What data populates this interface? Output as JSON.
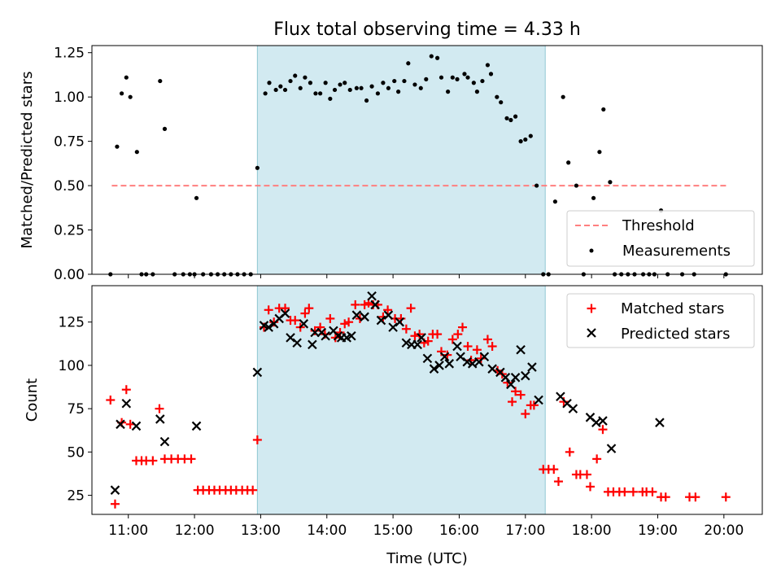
{
  "title": "Flux total observing time = 4.33 h",
  "chart_data": [
    {
      "type": "scatter",
      "panel": "top",
      "ylabel": "Matched/Predicted stars",
      "ylim": [
        0,
        1.29
      ],
      "yticks": [
        {
          "value": 0,
          "label": "0.00"
        },
        {
          "value": 0.25,
          "label": "0.25"
        },
        {
          "value": 0.5,
          "label": "0.50"
        },
        {
          "value": 0.75,
          "label": "0.75"
        },
        {
          "value": 1.0,
          "label": "1.00"
        },
        {
          "value": 1.25,
          "label": "1.25"
        }
      ],
      "threshold": {
        "label": "Threshold",
        "value": 0.5,
        "x_start": 10.75,
        "x_end": 20.08,
        "color": "#ff7f7f"
      },
      "measurements": {
        "label": "Measurements",
        "color": "#000000",
        "points": [
          [
            10.73,
            0
          ],
          [
            10.83,
            0.72
          ],
          [
            10.9,
            1.02
          ],
          [
            10.97,
            1.11
          ],
          [
            11.03,
            1.0
          ],
          [
            11.13,
            0.69
          ],
          [
            11.2,
            0
          ],
          [
            11.27,
            0
          ],
          [
            11.37,
            0
          ],
          [
            11.48,
            1.09
          ],
          [
            11.55,
            0.82
          ],
          [
            11.7,
            0
          ],
          [
            11.83,
            0
          ],
          [
            11.93,
            0
          ],
          [
            12.0,
            0
          ],
          [
            12.03,
            0.43
          ],
          [
            12.13,
            0
          ],
          [
            12.25,
            0
          ],
          [
            12.35,
            0
          ],
          [
            12.45,
            0
          ],
          [
            12.55,
            0
          ],
          [
            12.65,
            0
          ],
          [
            12.75,
            0
          ],
          [
            12.85,
            0
          ],
          [
            12.95,
            0.6
          ],
          [
            13.07,
            1.02
          ],
          [
            13.13,
            1.08
          ],
          [
            13.23,
            1.04
          ],
          [
            13.3,
            1.06
          ],
          [
            13.37,
            1.04
          ],
          [
            13.45,
            1.09
          ],
          [
            13.52,
            1.12
          ],
          [
            13.6,
            1.05
          ],
          [
            13.67,
            1.11
          ],
          [
            13.75,
            1.08
          ],
          [
            13.83,
            1.02
          ],
          [
            13.9,
            1.02
          ],
          [
            13.98,
            1.08
          ],
          [
            14.05,
            0.99
          ],
          [
            14.12,
            1.04
          ],
          [
            14.2,
            1.07
          ],
          [
            14.27,
            1.08
          ],
          [
            14.35,
            1.04
          ],
          [
            14.45,
            1.05
          ],
          [
            14.52,
            1.05
          ],
          [
            14.6,
            0.98
          ],
          [
            14.68,
            1.06
          ],
          [
            14.77,
            1.02
          ],
          [
            14.85,
            1.08
          ],
          [
            14.93,
            1.05
          ],
          [
            15.02,
            1.09
          ],
          [
            15.08,
            1.03
          ],
          [
            15.17,
            1.09
          ],
          [
            15.23,
            1.19
          ],
          [
            15.33,
            1.07
          ],
          [
            15.42,
            1.05
          ],
          [
            15.5,
            1.1
          ],
          [
            15.58,
            1.23
          ],
          [
            15.67,
            1.22
          ],
          [
            15.73,
            1.11
          ],
          [
            15.83,
            1.03
          ],
          [
            15.9,
            1.11
          ],
          [
            15.97,
            1.1
          ],
          [
            16.08,
            1.13
          ],
          [
            16.13,
            1.11
          ],
          [
            16.22,
            1.08
          ],
          [
            16.27,
            1.03
          ],
          [
            16.35,
            1.09
          ],
          [
            16.43,
            1.18
          ],
          [
            16.48,
            1.13
          ],
          [
            16.57,
            1.0
          ],
          [
            16.63,
            0.97
          ],
          [
            16.72,
            0.88
          ],
          [
            16.78,
            0.87
          ],
          [
            16.85,
            0.89
          ],
          [
            16.93,
            0.75
          ],
          [
            17.0,
            0.76
          ],
          [
            17.08,
            0.78
          ],
          [
            17.17,
            0.5
          ],
          [
            17.27,
            0
          ],
          [
            17.35,
            0
          ],
          [
            17.45,
            0.41
          ],
          [
            17.57,
            1.0
          ],
          [
            17.65,
            0.63
          ],
          [
            17.77,
            0.5
          ],
          [
            17.88,
            0
          ],
          [
            18.03,
            0.43
          ],
          [
            18.12,
            0.69
          ],
          [
            18.18,
            0.93
          ],
          [
            18.28,
            0.52
          ],
          [
            18.35,
            0
          ],
          [
            18.45,
            0
          ],
          [
            18.55,
            0
          ],
          [
            18.65,
            0
          ],
          [
            18.78,
            0
          ],
          [
            18.87,
            0
          ],
          [
            18.95,
            0
          ],
          [
            19.05,
            0.36
          ],
          [
            19.15,
            0
          ],
          [
            19.37,
            0
          ],
          [
            19.55,
            0
          ],
          [
            20.03,
            0
          ]
        ]
      },
      "legend": {
        "placement": "lower right",
        "entries": [
          "Threshold",
          "Measurements"
        ]
      }
    },
    {
      "type": "scatter",
      "panel": "bottom",
      "xlabel": "Time (UTC)",
      "ylabel": "Count",
      "ylim": [
        14,
        146
      ],
      "yticks": [
        25,
        50,
        75,
        100,
        125
      ],
      "xticks": [
        "11:00",
        "12:00",
        "13:00",
        "14:00",
        "15:00",
        "16:00",
        "17:00",
        "18:00",
        "19:00",
        "20:00"
      ],
      "series": [
        {
          "name": "Matched stars",
          "marker": "+",
          "color": "#ff0000",
          "points": [
            [
              10.73,
              80
            ],
            [
              10.8,
              20
            ],
            [
              10.9,
              67
            ],
            [
              10.97,
              86
            ],
            [
              11.03,
              66
            ],
            [
              11.12,
              45
            ],
            [
              11.2,
              45
            ],
            [
              11.27,
              45
            ],
            [
              11.37,
              45
            ],
            [
              11.47,
              75
            ],
            [
              11.55,
              46
            ],
            [
              11.65,
              46
            ],
            [
              11.75,
              46
            ],
            [
              11.85,
              46
            ],
            [
              11.95,
              46
            ],
            [
              12.05,
              28
            ],
            [
              12.13,
              28
            ],
            [
              12.22,
              28
            ],
            [
              12.3,
              28
            ],
            [
              12.38,
              28
            ],
            [
              12.47,
              28
            ],
            [
              12.55,
              28
            ],
            [
              12.63,
              28
            ],
            [
              12.72,
              28
            ],
            [
              12.8,
              28
            ],
            [
              12.88,
              28
            ],
            [
              12.95,
              57
            ],
            [
              13.05,
              122
            ],
            [
              13.12,
              132
            ],
            [
              13.2,
              125
            ],
            [
              13.28,
              133
            ],
            [
              13.37,
              133
            ],
            [
              13.45,
              126
            ],
            [
              13.52,
              126
            ],
            [
              13.6,
              122
            ],
            [
              13.67,
              130
            ],
            [
              13.73,
              133
            ],
            [
              13.82,
              120
            ],
            [
              13.9,
              122
            ],
            [
              13.97,
              118
            ],
            [
              14.05,
              127
            ],
            [
              14.13,
              116
            ],
            [
              14.2,
              119
            ],
            [
              14.27,
              124
            ],
            [
              14.33,
              125
            ],
            [
              14.43,
              135
            ],
            [
              14.5,
              127
            ],
            [
              14.57,
              135
            ],
            [
              14.63,
              136
            ],
            [
              14.7,
              135
            ],
            [
              14.77,
              135
            ],
            [
              14.85,
              128
            ],
            [
              14.92,
              132
            ],
            [
              15.03,
              127
            ],
            [
              15.12,
              127
            ],
            [
              15.2,
              121
            ],
            [
              15.27,
              133
            ],
            [
              15.33,
              117
            ],
            [
              15.4,
              118
            ],
            [
              15.47,
              113
            ],
            [
              15.53,
              114
            ],
            [
              15.6,
              118
            ],
            [
              15.67,
              118
            ],
            [
              15.73,
              108
            ],
            [
              15.82,
              106
            ],
            [
              15.9,
              115
            ],
            [
              15.98,
              118
            ],
            [
              16.05,
              122
            ],
            [
              16.13,
              111
            ],
            [
              16.18,
              103
            ],
            [
              16.27,
              109
            ],
            [
              16.33,
              104
            ],
            [
              16.43,
              115
            ],
            [
              16.5,
              111
            ],
            [
              16.58,
              97
            ],
            [
              16.65,
              95
            ],
            [
              16.73,
              90
            ],
            [
              16.8,
              79
            ],
            [
              16.85,
              85
            ],
            [
              16.93,
              83
            ],
            [
              17.0,
              72
            ],
            [
              17.08,
              77
            ],
            [
              17.13,
              77
            ],
            [
              17.27,
              40
            ],
            [
              17.35,
              40
            ],
            [
              17.43,
              40
            ],
            [
              17.5,
              33
            ],
            [
              17.58,
              79
            ],
            [
              17.67,
              50
            ],
            [
              17.77,
              37
            ],
            [
              17.83,
              37
            ],
            [
              17.93,
              37
            ],
            [
              17.98,
              30
            ],
            [
              18.08,
              46
            ],
            [
              18.17,
              63
            ],
            [
              18.25,
              27
            ],
            [
              18.33,
              27
            ],
            [
              18.42,
              27
            ],
            [
              18.5,
              27
            ],
            [
              18.63,
              27
            ],
            [
              18.77,
              27
            ],
            [
              18.83,
              27
            ],
            [
              18.92,
              27
            ],
            [
              19.05,
              24
            ],
            [
              19.12,
              24
            ],
            [
              19.48,
              24
            ],
            [
              19.57,
              24
            ],
            [
              20.03,
              24
            ]
          ]
        },
        {
          "name": "Predicted stars",
          "marker": "x",
          "color": "#000000",
          "points": [
            [
              10.8,
              28
            ],
            [
              10.88,
              66
            ],
            [
              10.97,
              78
            ],
            [
              11.12,
              65
            ],
            [
              11.48,
              69
            ],
            [
              11.55,
              56
            ],
            [
              12.03,
              65
            ],
            [
              12.95,
              96
            ],
            [
              13.05,
              123
            ],
            [
              13.12,
              122
            ],
            [
              13.2,
              124
            ],
            [
              13.28,
              127
            ],
            [
              13.37,
              130
            ],
            [
              13.45,
              116
            ],
            [
              13.55,
              113
            ],
            [
              13.65,
              124
            ],
            [
              13.78,
              112
            ],
            [
              13.82,
              119
            ],
            [
              13.92,
              119
            ],
            [
              13.98,
              117
            ],
            [
              14.1,
              120
            ],
            [
              14.17,
              117
            ],
            [
              14.22,
              116
            ],
            [
              14.3,
              116
            ],
            [
              14.37,
              117
            ],
            [
              14.45,
              129
            ],
            [
              14.57,
              128
            ],
            [
              14.68,
              140
            ],
            [
              14.73,
              135
            ],
            [
              14.82,
              126
            ],
            [
              14.93,
              129
            ],
            [
              15.0,
              122
            ],
            [
              15.1,
              125
            ],
            [
              15.2,
              113
            ],
            [
              15.28,
              112
            ],
            [
              15.37,
              112
            ],
            [
              15.43,
              116
            ],
            [
              15.52,
              104
            ],
            [
              15.62,
              98
            ],
            [
              15.7,
              100
            ],
            [
              15.78,
              105
            ],
            [
              15.85,
              101
            ],
            [
              15.97,
              111
            ],
            [
              16.02,
              105
            ],
            [
              16.12,
              102
            ],
            [
              16.2,
              101
            ],
            [
              16.3,
              102
            ],
            [
              16.38,
              105
            ],
            [
              16.5,
              98
            ],
            [
              16.62,
              96
            ],
            [
              16.7,
              93
            ],
            [
              16.78,
              89
            ],
            [
              16.85,
              93
            ],
            [
              16.93,
              109
            ],
            [
              17.0,
              94
            ],
            [
              17.1,
              99
            ],
            [
              17.2,
              80
            ],
            [
              17.53,
              82
            ],
            [
              17.63,
              78
            ],
            [
              17.72,
              75
            ],
            [
              17.98,
              70
            ],
            [
              18.07,
              67
            ],
            [
              18.17,
              68
            ],
            [
              18.3,
              52
            ],
            [
              19.03,
              67
            ]
          ]
        }
      ],
      "legend": {
        "placement": "upper right",
        "entries": [
          "Matched stars",
          "Predicted stars"
        ]
      }
    }
  ],
  "shaded_span": {
    "x_start": 12.95,
    "x_end": 17.3,
    "color": "#add8e6"
  }
}
